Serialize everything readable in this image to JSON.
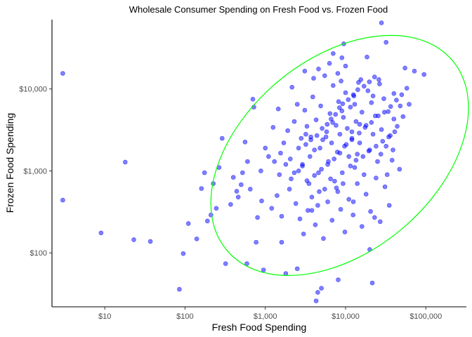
{
  "chart_data": {
    "type": "scatter",
    "title": "Wholesale Consumer Spending on Fresh Food vs. Frozen Food",
    "xlabel": "Fresh Food Spending",
    "ylabel": "Frozen Food Spending",
    "x_scale": "log10",
    "y_scale": "log10",
    "xlim": [
      2.2,
      320000
    ],
    "ylim": [
      22,
      70000
    ],
    "x_ticks": [
      {
        "value": 10,
        "label": "$10"
      },
      {
        "value": 100,
        "label": "$100"
      },
      {
        "value": 1000,
        "label": "$1,000"
      },
      {
        "value": 10000,
        "label": "$10,000"
      },
      {
        "value": 100000,
        "label": "$100,000"
      }
    ],
    "y_ticks": [
      {
        "value": 100,
        "label": "$100"
      },
      {
        "value": 1000,
        "label": "$1,000"
      },
      {
        "value": 10000,
        "label": "$10,000"
      }
    ],
    "grid": false,
    "colors": {
      "points": "#0000ff",
      "ellipse": "#00ff00",
      "axis": "#000000"
    },
    "ellipse": {
      "center": [
        2600,
        1000
      ],
      "extent_x": [
        210,
        340000
      ],
      "extent_y": [
        53,
        45000
      ],
      "orientation": "tilted toward upper-right",
      "color": "#00ff00"
    },
    "series": [
      {
        "points": [
          [
            3,
            15500
          ],
          [
            3,
            440
          ],
          [
            9,
            175
          ],
          [
            18,
            1280
          ],
          [
            23,
            145
          ],
          [
            37,
            138
          ],
          [
            85,
            36
          ],
          [
            95,
            98
          ],
          [
            110,
            228
          ],
          [
            140,
            148
          ],
          [
            160,
            610
          ],
          [
            175,
            950
          ],
          [
            190,
            245
          ],
          [
            210,
            290
          ],
          [
            225,
            700
          ],
          [
            245,
            350
          ],
          [
            265,
            1100
          ],
          [
            290,
            2500
          ],
          [
            320,
            74
          ],
          [
            370,
            390
          ],
          [
            400,
            835
          ],
          [
            440,
            565
          ],
          [
            520,
            950
          ],
          [
            560,
            2250
          ],
          [
            590,
            74
          ],
          [
            700,
            7500
          ],
          [
            720,
            6000
          ],
          [
            770,
            135
          ],
          [
            880,
            1000
          ],
          [
            950,
            62
          ],
          [
            1000,
            1900
          ],
          [
            1600,
            135
          ],
          [
            1800,
            56
          ],
          [
            2500,
            64
          ],
          [
            2800,
            2500
          ],
          [
            3200,
            2800
          ],
          [
            4300,
            26
          ],
          [
            4500,
            33
          ],
          [
            5000,
            37
          ],
          [
            8100,
            47
          ],
          [
            9500,
            35500
          ],
          [
            12500,
            420
          ],
          [
            14000,
            1600
          ],
          [
            20000,
            110
          ],
          [
            21500,
            43
          ],
          [
            23000,
            270
          ],
          [
            28000,
            64000
          ],
          [
            32000,
            37000
          ],
          [
            38000,
            1350
          ],
          [
            40000,
            4300
          ],
          [
            55000,
            18000
          ],
          [
            62000,
            6500
          ],
          [
            72000,
            16500
          ],
          [
            95000,
            15000
          ],
          [
            1100,
            1500
          ],
          [
            1300,
            1300
          ],
          [
            1500,
            900
          ],
          [
            1700,
            2200
          ],
          [
            1900,
            3100
          ],
          [
            2100,
            800
          ],
          [
            2300,
            4000
          ],
          [
            2600,
            1900
          ],
          [
            2900,
            1200
          ],
          [
            3100,
            5500
          ],
          [
            3300,
            3500
          ],
          [
            3500,
            700
          ],
          [
            3700,
            2600
          ],
          [
            3900,
            8000
          ],
          [
            4100,
            1800
          ],
          [
            4300,
            4200
          ],
          [
            4600,
            950
          ],
          [
            4900,
            6200
          ],
          [
            5200,
            2400
          ],
          [
            5500,
            14500
          ],
          [
            5800,
            3000
          ],
          [
            6100,
            1300
          ],
          [
            6400,
            5000
          ],
          [
            6700,
            2200
          ],
          [
            7000,
            11000
          ],
          [
            7300,
            750
          ],
          [
            7600,
            3600
          ],
          [
            7900,
            1700
          ],
          [
            8200,
            7000
          ],
          [
            8500,
            2800
          ],
          [
            8800,
            12500
          ],
          [
            9100,
            950
          ],
          [
            9400,
            4500
          ],
          [
            9700,
            2000
          ],
          [
            10000,
            9000
          ],
          [
            10500,
            3300
          ],
          [
            11000,
            1500
          ],
          [
            11500,
            6000
          ],
          [
            12000,
            2500
          ],
          [
            12500,
            8500
          ],
          [
            13000,
            1100
          ],
          [
            13500,
            4000
          ],
          [
            14500,
            12000
          ],
          [
            15000,
            2200
          ],
          [
            16000,
            5200
          ],
          [
            17000,
            900
          ],
          [
            18000,
            3600
          ],
          [
            19000,
            9500
          ],
          [
            20000,
            1800
          ],
          [
            21000,
            6800
          ],
          [
            22000,
            2800
          ],
          [
            23500,
            4700
          ],
          [
            25000,
            1300
          ],
          [
            26500,
            11500
          ],
          [
            28000,
            3200
          ],
          [
            30000,
            7600
          ],
          [
            32000,
            2000
          ],
          [
            34000,
            5300
          ],
          [
            36000,
            2700
          ],
          [
            40000,
            8800
          ],
          [
            44000,
            3500
          ],
          [
            48000,
            6200
          ],
          [
            52000,
            4600
          ],
          [
            2000,
            600
          ],
          [
            2400,
            400
          ],
          [
            2700,
            260
          ],
          [
            3000,
            170
          ],
          [
            3400,
            330
          ],
          [
            3800,
            480
          ],
          [
            4200,
            220
          ],
          [
            4700,
            560
          ],
          [
            5300,
            150
          ],
          [
            6000,
            420
          ],
          [
            6800,
            250
          ],
          [
            7700,
            620
          ],
          [
            8700,
            340
          ],
          [
            9800,
            180
          ],
          [
            11000,
            450
          ],
          [
            12400,
            290
          ],
          [
            14000,
            700
          ],
          [
            16000,
            210
          ],
          [
            18000,
            520
          ],
          [
            20500,
            320
          ],
          [
            24000,
            820
          ],
          [
            27000,
            240
          ],
          [
            31000,
            640
          ],
          [
            35000,
            380
          ],
          [
            1200,
            350
          ],
          [
            1400,
            500
          ],
          [
            1600,
            280
          ],
          [
            900,
            430
          ],
          [
            800,
            270
          ],
          [
            650,
            600
          ],
          [
            600,
            1300
          ],
          [
            500,
            680
          ],
          [
            460,
            480
          ],
          [
            1250,
            3400
          ],
          [
            1450,
            5700
          ],
          [
            2150,
            10500
          ],
          [
            2500,
            6500
          ],
          [
            3100,
            16500
          ],
          [
            4000,
            13500
          ],
          [
            4600,
            17500
          ],
          [
            6300,
            20500
          ],
          [
            8000,
            15500
          ],
          [
            10000,
            19000
          ],
          [
            15500,
            13000
          ],
          [
            18500,
            24500
          ],
          [
            22000,
            8200
          ],
          [
            26000,
            13000
          ],
          [
            13000,
            6500
          ],
          [
            9000,
            5400
          ],
          [
            6900,
            3900
          ],
          [
            5700,
            2600
          ],
          [
            4800,
            1900
          ],
          [
            3600,
            1500
          ],
          [
            2900,
            1150
          ],
          [
            3300,
            760
          ],
          [
            4100,
            880
          ],
          [
            5000,
            1050
          ],
          [
            6000,
            1200
          ],
          [
            7200,
            1400
          ],
          [
            8500,
            1650
          ],
          [
            10200,
            2100
          ],
          [
            12000,
            2400
          ],
          [
            14800,
            2900
          ],
          [
            17500,
            3400
          ],
          [
            21000,
            3900
          ],
          [
            25500,
            4700
          ],
          [
            30500,
            5200
          ],
          [
            36500,
            6100
          ],
          [
            43000,
            7300
          ],
          [
            50000,
            8500
          ],
          [
            58000,
            10200
          ],
          [
            11500,
            1150
          ],
          [
            13500,
            1350
          ],
          [
            16500,
            1500
          ],
          [
            19500,
            1750
          ],
          [
            24000,
            2000
          ],
          [
            29000,
            2300
          ],
          [
            34500,
            2600
          ],
          [
            41000,
            3000
          ],
          [
            47000,
            1050
          ],
          [
            39000,
            1800
          ],
          [
            33000,
            900
          ],
          [
            27500,
            1600
          ],
          [
            8000,
            560
          ],
          [
            9300,
            700
          ],
          [
            6500,
            800
          ],
          [
            5500,
            600
          ],
          [
            4500,
            380
          ],
          [
            3800,
            330
          ],
          [
            2300,
            950
          ],
          [
            1800,
            1200
          ],
          [
            1550,
            1650
          ],
          [
            2050,
            1400
          ],
          [
            2600,
            1000
          ],
          [
            3200,
            2100
          ],
          [
            3700,
            2400
          ],
          [
            4400,
            2700
          ],
          [
            5100,
            3300
          ],
          [
            5900,
            3700
          ],
          [
            6600,
            4300
          ],
          [
            7500,
            4900
          ],
          [
            8400,
            5900
          ],
          [
            9200,
            6600
          ],
          [
            10800,
            7400
          ],
          [
            12700,
            8200
          ],
          [
            14200,
            9800
          ],
          [
            17000,
            10800
          ],
          [
            19800,
            12200
          ],
          [
            23000,
            14000
          ],
          [
            9000,
            24000
          ],
          [
            7000,
            27000
          ],
          [
            12000,
            3000
          ],
          [
            15000,
            3700
          ]
        ]
      }
    ]
  }
}
